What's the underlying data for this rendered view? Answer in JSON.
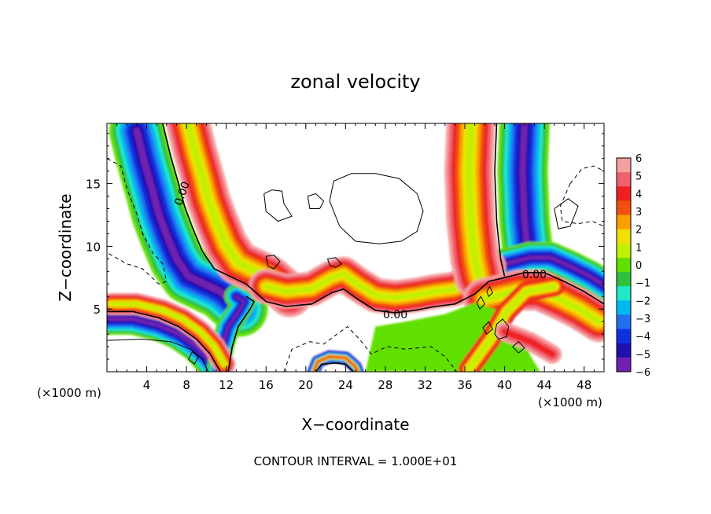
{
  "chart_data": {
    "type": "heatmap",
    "title": "zonal velocity",
    "xlabel": "X−coordinate",
    "ylabel": "Z−coordinate",
    "x_unit_left": "(×1000 m)",
    "x_unit_right": "(×1000 m)",
    "footer": "CONTOUR INTERVAL = 1.000E+01",
    "xlim": [
      0,
      50
    ],
    "ylim": [
      0,
      19.8
    ],
    "xticks": [
      4,
      8,
      12,
      16,
      20,
      24,
      28,
      32,
      36,
      40,
      44,
      48
    ],
    "yticks": [
      5,
      10,
      15
    ],
    "colorbar": {
      "ticks": [
        "6",
        "5",
        "4",
        "3",
        "2",
        "1",
        "0",
        "−1",
        "−2",
        "−3",
        "−4",
        "−5",
        "−6"
      ],
      "colors": [
        "#f4a0a0",
        "#f06070",
        "#ee2020",
        "#f05010",
        "#f8a000",
        "#f0e000",
        "#c0f000",
        "#60e000",
        "#30c040",
        "#20e8c8",
        "#00b8f0",
        "#2070f0",
        "#1030e0",
        "#2010b0",
        "#7020b0"
      ]
    },
    "contour_labels": [
      {
        "text": "0.00",
        "x": 7.6,
        "z": 14.2,
        "angle": -70
      },
      {
        "text": "0.00",
        "x": 29.0,
        "z": 4.5,
        "angle": 0
      },
      {
        "text": "0.00",
        "x": 43.0,
        "z": 7.7,
        "angle": 0
      }
    ],
    "zero_contours": [
      [
        [
          5.6,
          19.8
        ],
        [
          6.4,
          17.2
        ],
        [
          7.2,
          15.0
        ],
        [
          7.8,
          13.2
        ],
        [
          8.6,
          11.5
        ],
        [
          9.6,
          9.6
        ],
        [
          10.8,
          8.2
        ],
        [
          12.4,
          7.6
        ],
        [
          14.0,
          7.0
        ],
        [
          16.0,
          5.6
        ],
        [
          18.0,
          5.2
        ],
        [
          20.6,
          5.4
        ],
        [
          22.6,
          6.3
        ],
        [
          23.8,
          6.6
        ],
        [
          25.2,
          5.8
        ],
        [
          27.0,
          4.9
        ],
        [
          29.0,
          4.7
        ],
        [
          31.0,
          4.9
        ],
        [
          33.0,
          5.2
        ],
        [
          35.0,
          5.4
        ],
        [
          37.0,
          6.2
        ],
        [
          38.4,
          7.2
        ],
        [
          40.0,
          7.5
        ],
        [
          42.0,
          7.9
        ],
        [
          44.0,
          7.9
        ],
        [
          46.0,
          7.2
        ],
        [
          48.0,
          6.4
        ],
        [
          50.0,
          5.4
        ]
      ],
      [
        [
          0.0,
          4.8
        ],
        [
          2.6,
          4.8
        ],
        [
          5.2,
          4.3
        ],
        [
          7.2,
          3.6
        ],
        [
          9.0,
          2.6
        ],
        [
          10.4,
          1.4
        ],
        [
          11.4,
          0.0
        ]
      ],
      [
        [
          12.2,
          0.0
        ],
        [
          12.6,
          2.0
        ],
        [
          13.2,
          3.6
        ],
        [
          14.4,
          5.0
        ],
        [
          14.8,
          5.6
        ],
        [
          14.0,
          6.0
        ]
      ],
      [
        [
          21.0,
          0.0
        ],
        [
          21.6,
          0.6
        ],
        [
          23.0,
          0.7
        ],
        [
          24.0,
          0.6
        ],
        [
          24.8,
          0.0
        ]
      ],
      [
        [
          39.2,
          19.8
        ],
        [
          39.0,
          16.0
        ],
        [
          39.2,
          12.0
        ],
        [
          39.6,
          9.0
        ],
        [
          40.0,
          7.6
        ]
      ]
    ],
    "positive_contours": [
      [
        [
          0.0,
          2.5
        ],
        [
          3.6,
          2.6
        ],
        [
          6.4,
          2.4
        ],
        [
          8.4,
          1.8
        ],
        [
          9.6,
          1.0
        ],
        [
          10.2,
          0.0
        ]
      ],
      [
        [
          16.2,
          8.4
        ],
        [
          16.0,
          9.2
        ],
        [
          16.8,
          9.3
        ],
        [
          17.4,
          8.8
        ],
        [
          16.8,
          8.2
        ],
        [
          16.2,
          8.4
        ]
      ],
      [
        [
          22.4,
          8.5
        ],
        [
          22.2,
          9.0
        ],
        [
          23.0,
          9.1
        ],
        [
          23.6,
          8.6
        ],
        [
          23.0,
          8.3
        ],
        [
          22.4,
          8.5
        ]
      ],
      [
        [
          15.8,
          14.2
        ],
        [
          16.0,
          12.8
        ],
        [
          17.2,
          12.0
        ],
        [
          18.6,
          12.4
        ],
        [
          17.8,
          13.4
        ],
        [
          17.6,
          14.4
        ],
        [
          16.6,
          14.5
        ],
        [
          15.8,
          14.2
        ]
      ],
      [
        [
          20.2,
          14.0
        ],
        [
          20.4,
          13.0
        ],
        [
          21.4,
          13.0
        ],
        [
          21.8,
          13.6
        ],
        [
          21.0,
          14.2
        ],
        [
          20.2,
          14.0
        ]
      ],
      [
        [
          22.8,
          15.2
        ],
        [
          22.4,
          13.6
        ],
        [
          23.4,
          11.6
        ],
        [
          25.0,
          10.4
        ],
        [
          27.4,
          10.2
        ],
        [
          29.6,
          10.4
        ],
        [
          31.2,
          11.2
        ],
        [
          31.8,
          12.8
        ],
        [
          31.2,
          14.2
        ],
        [
          29.4,
          15.4
        ],
        [
          27.0,
          15.8
        ],
        [
          24.6,
          15.8
        ],
        [
          22.8,
          15.2
        ]
      ],
      [
        [
          45.0,
          13.0
        ],
        [
          45.4,
          11.4
        ],
        [
          46.6,
          11.6
        ],
        [
          47.4,
          13.2
        ],
        [
          46.4,
          13.8
        ],
        [
          45.0,
          13.0
        ]
      ],
      [
        [
          37.2,
          5.5
        ],
        [
          37.6,
          6.0
        ],
        [
          38.0,
          5.4
        ],
        [
          37.5,
          5.0
        ],
        [
          37.2,
          5.5
        ]
      ],
      [
        [
          38.2,
          6.4
        ],
        [
          38.5,
          6.8
        ],
        [
          38.8,
          6.3
        ],
        [
          38.4,
          6.0
        ],
        [
          38.2,
          6.4
        ]
      ],
      [
        [
          37.8,
          3.5
        ],
        [
          38.4,
          4.0
        ],
        [
          38.8,
          3.4
        ],
        [
          38.2,
          3.0
        ],
        [
          37.8,
          3.5
        ]
      ],
      [
        [
          40.8,
          2.0
        ],
        [
          41.4,
          2.4
        ],
        [
          42.0,
          1.9
        ],
        [
          41.4,
          1.5
        ],
        [
          40.8,
          2.0
        ]
      ],
      [
        [
          39.0,
          3.0
        ],
        [
          39.4,
          2.6
        ],
        [
          40.2,
          2.8
        ],
        [
          40.4,
          3.6
        ],
        [
          39.8,
          4.2
        ],
        [
          39.2,
          3.8
        ],
        [
          39.0,
          3.0
        ]
      ],
      [
        [
          8.2,
          1.0
        ],
        [
          8.6,
          1.6
        ],
        [
          9.2,
          1.2
        ],
        [
          8.8,
          0.6
        ],
        [
          8.2,
          1.0
        ]
      ]
    ],
    "negative_contours": [
      [
        [
          0.0,
          17.0
        ],
        [
          1.4,
          16.4
        ],
        [
          2.0,
          14.6
        ],
        [
          3.0,
          12.6
        ],
        [
          3.6,
          11.0
        ],
        [
          4.6,
          9.5
        ],
        [
          5.6,
          8.6
        ],
        [
          6.0,
          7.2
        ],
        [
          5.2,
          7.0
        ],
        [
          3.6,
          8.2
        ],
        [
          2.0,
          8.6
        ],
        [
          0.0,
          9.5
        ]
      ],
      [
        [
          46.6,
          15.0
        ],
        [
          47.8,
          16.2
        ],
        [
          49.0,
          16.4
        ],
        [
          50.0,
          16.0
        ]
      ],
      [
        [
          46.6,
          15.0
        ],
        [
          45.6,
          13.2
        ],
        [
          45.8,
          12.0
        ],
        [
          47.4,
          11.8
        ],
        [
          48.8,
          12.0
        ],
        [
          50.0,
          11.6
        ]
      ],
      [
        [
          17.8,
          0.0
        ],
        [
          18.6,
          1.8
        ],
        [
          20.4,
          2.4
        ],
        [
          21.8,
          2.2
        ],
        [
          22.8,
          2.8
        ],
        [
          24.2,
          3.6
        ],
        [
          25.4,
          2.6
        ],
        [
          26.6,
          1.4
        ],
        [
          27.6,
          1.8
        ],
        [
          28.2,
          2.0
        ]
      ],
      [
        [
          28.2,
          2.0
        ],
        [
          30.0,
          1.8
        ],
        [
          32.6,
          2.0
        ],
        [
          34.0,
          1.2
        ],
        [
          35.2,
          0.0
        ]
      ]
    ]
  }
}
